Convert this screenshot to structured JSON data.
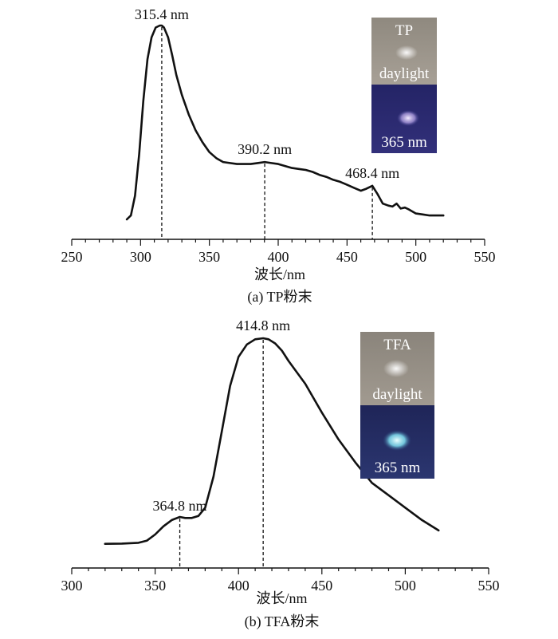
{
  "chart_data": [
    {
      "type": "line",
      "caption": "(a) TP粉末",
      "xlabel": "波长/nm",
      "ylabel": "",
      "xlim": [
        250,
        550
      ],
      "xticks": [
        250,
        300,
        350,
        400,
        450,
        500,
        550
      ],
      "xtick_labels": [
        "250",
        "300",
        "350",
        "400",
        "450",
        "500",
        "550"
      ],
      "ylim": [
        0,
        1
      ],
      "grid": false,
      "series": [
        {
          "x": [
            290,
            293,
            296,
            299,
            302,
            305,
            308,
            311,
            314,
            315.4,
            317,
            320,
            323,
            326,
            330,
            335,
            340,
            345,
            350,
            355,
            360,
            365,
            370,
            375,
            380,
            385,
            390.2,
            395,
            400,
            405,
            410,
            415,
            420,
            425,
            430,
            435,
            440,
            445,
            450,
            455,
            460,
            464,
            468.4,
            472,
            476,
            480,
            483,
            486,
            489,
            492,
            495,
            500,
            505,
            510,
            515,
            520
          ],
          "y": [
            0.02,
            0.04,
            0.14,
            0.35,
            0.62,
            0.83,
            0.94,
            0.99,
            1.0,
            1.0,
            0.99,
            0.94,
            0.85,
            0.75,
            0.65,
            0.55,
            0.47,
            0.41,
            0.36,
            0.33,
            0.31,
            0.305,
            0.3,
            0.3,
            0.3,
            0.305,
            0.31,
            0.305,
            0.3,
            0.29,
            0.28,
            0.275,
            0.27,
            0.26,
            0.245,
            0.235,
            0.22,
            0.21,
            0.195,
            0.18,
            0.165,
            0.175,
            0.19,
            0.15,
            0.1,
            0.09,
            0.085,
            0.1,
            0.075,
            0.08,
            0.07,
            0.05,
            0.045,
            0.04,
            0.04,
            0.04
          ]
        }
      ],
      "peaks": [
        {
          "x": 315.4,
          "label": "315.4 nm"
        },
        {
          "x": 390.2,
          "label": "390.2 nm"
        },
        {
          "x": 468.4,
          "label": "468.4 nm"
        }
      ],
      "inset": {
        "top_label": "TP",
        "mid_label": "daylight",
        "bottom_label": "365 nm",
        "colors": {
          "daylight": "#9a9389",
          "uv": "#2a2a70",
          "spot_daylight": "#d8d6d0",
          "spot_uv": "#d6c6f2"
        }
      }
    },
    {
      "type": "line",
      "caption": "(b) TFA粉末",
      "xlabel": "波长/nm",
      "ylabel": "",
      "xlim": [
        300,
        550
      ],
      "xticks": [
        300,
        350,
        400,
        450,
        500,
        550
      ],
      "xtick_labels": [
        "300",
        "350",
        "400",
        "450",
        "500",
        "550"
      ],
      "ylim": [
        0,
        1
      ],
      "grid": false,
      "series": [
        {
          "x": [
            320,
            330,
            340,
            345,
            350,
            355,
            360,
            364.8,
            368,
            372,
            376,
            380,
            385,
            390,
            395,
            400,
            405,
            410,
            414.8,
            418,
            422,
            426,
            430,
            440,
            450,
            460,
            470,
            480,
            490,
            500,
            510,
            520
          ],
          "y": [
            0.005,
            0.006,
            0.01,
            0.02,
            0.05,
            0.09,
            0.12,
            0.135,
            0.13,
            0.13,
            0.14,
            0.18,
            0.33,
            0.55,
            0.77,
            0.91,
            0.97,
            0.995,
            1.0,
            0.995,
            0.975,
            0.94,
            0.89,
            0.78,
            0.64,
            0.51,
            0.4,
            0.3,
            0.24,
            0.18,
            0.12,
            0.07
          ]
        }
      ],
      "peaks": [
        {
          "x": 364.8,
          "label": "364.8 nm"
        },
        {
          "x": 414.8,
          "label": "414.8 nm"
        }
      ],
      "inset": {
        "top_label": "TFA",
        "mid_label": "daylight",
        "bottom_label": "365 nm",
        "colors": {
          "daylight": "#938d84",
          "uv": "#232a60",
          "spot_daylight": "#d5d3cc",
          "spot_uv": "#9fe8f2"
        }
      }
    }
  ]
}
